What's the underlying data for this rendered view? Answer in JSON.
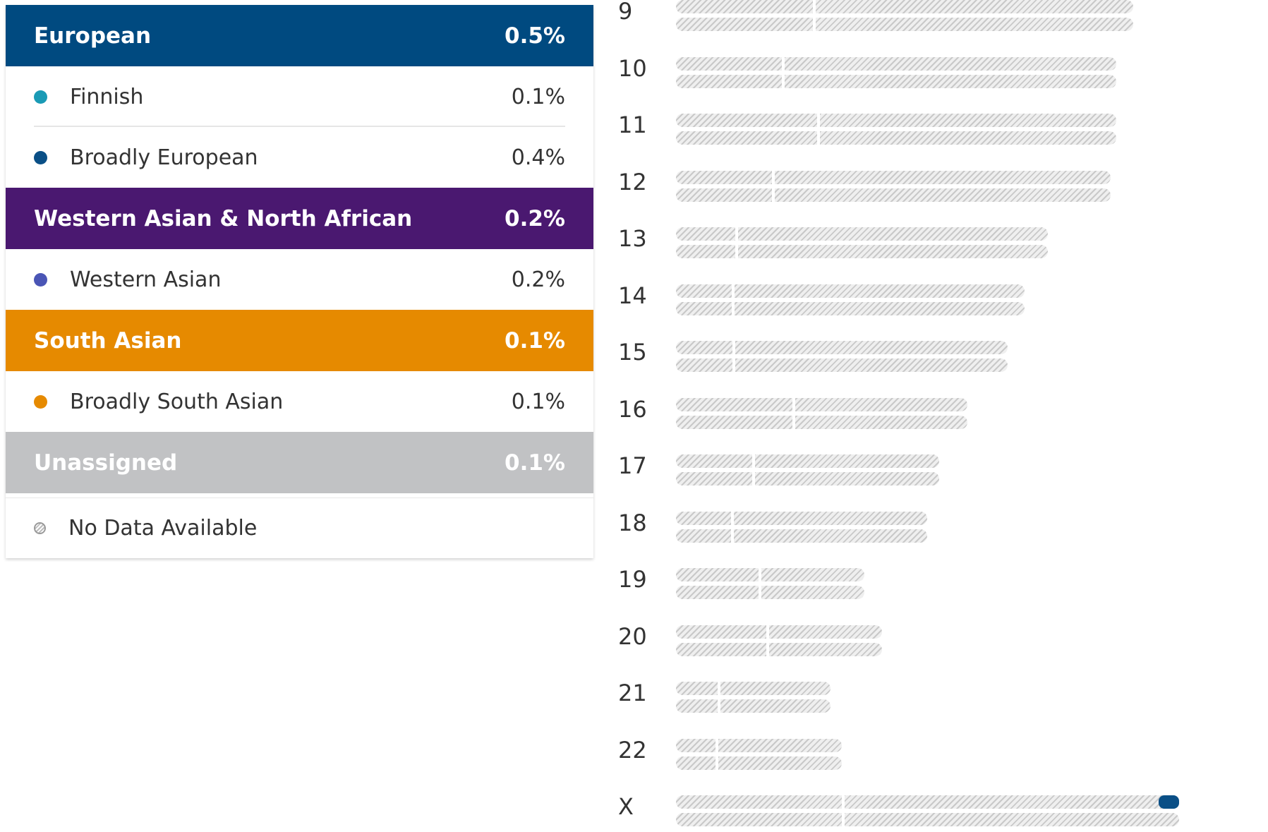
{
  "legend": {
    "groups": [
      {
        "name": "European",
        "percent": "0.5%",
        "color": "#004a80",
        "items": [
          {
            "name": "Finnish",
            "percent": "0.1%",
            "color": "#1a9ab5"
          },
          {
            "name": "Broadly European",
            "percent": "0.4%",
            "color": "#0a4f86"
          }
        ]
      },
      {
        "name": "Western Asian & North African",
        "percent": "0.2%",
        "color": "#4a1870",
        "items": [
          {
            "name": "Western Asian",
            "percent": "0.2%",
            "color": "#4a55b5"
          }
        ]
      },
      {
        "name": "South Asian",
        "percent": "0.1%",
        "color": "#e68a00",
        "items": [
          {
            "name": "Broadly South Asian",
            "percent": "0.1%",
            "color": "#e68a00"
          }
        ]
      },
      {
        "name": "Unassigned",
        "percent": "0.1%",
        "color": "#c1c2c4",
        "items": []
      }
    ],
    "no_data_label": "No Data Available"
  },
  "chromosomes": [
    {
      "label": "9",
      "length": 0.8,
      "centromere": 0.3
    },
    {
      "label": "10",
      "length": 0.77,
      "centromere": 0.24
    },
    {
      "label": "11",
      "length": 0.77,
      "centromere": 0.32
    },
    {
      "label": "12",
      "length": 0.76,
      "centromere": 0.22
    },
    {
      "label": "13",
      "length": 0.65,
      "centromere": 0.16
    },
    {
      "label": "14",
      "length": 0.61,
      "centromere": 0.16
    },
    {
      "label": "15",
      "length": 0.58,
      "centromere": 0.17
    },
    {
      "label": "16",
      "length": 0.51,
      "centromere": 0.4
    },
    {
      "label": "17",
      "length": 0.46,
      "centromere": 0.29
    },
    {
      "label": "18",
      "length": 0.44,
      "centromere": 0.22
    },
    {
      "label": "19",
      "length": 0.33,
      "centromere": 0.44
    },
    {
      "label": "20",
      "length": 0.36,
      "centromere": 0.44
    },
    {
      "label": "21",
      "length": 0.27,
      "centromere": 0.27
    },
    {
      "label": "22",
      "length": 0.29,
      "centromere": 0.24
    },
    {
      "label": "X",
      "length": 0.88,
      "centromere": 0.33,
      "segments": [
        {
          "strand": 1,
          "start": 0.96,
          "end": 1.0,
          "color": "#0a4f86"
        }
      ]
    }
  ]
}
